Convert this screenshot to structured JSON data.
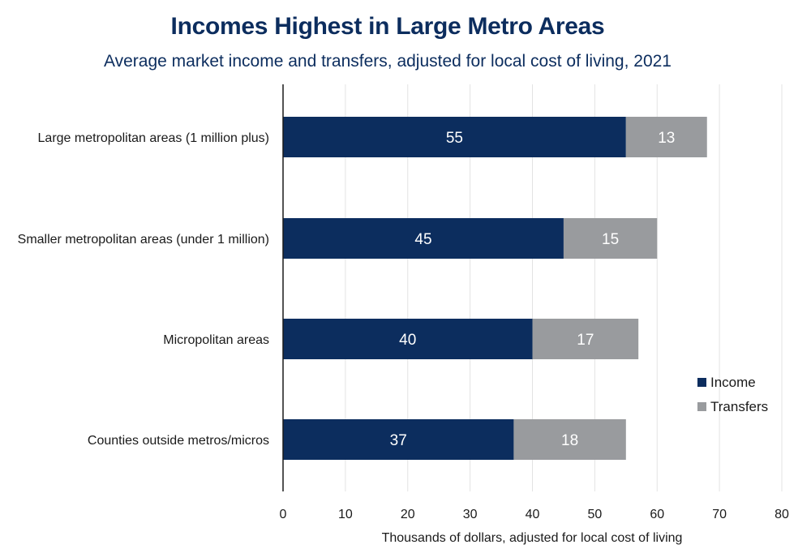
{
  "chart_data": {
    "type": "bar",
    "orientation": "horizontal",
    "stacked": true,
    "title": "Incomes Highest in Large Metro Areas",
    "subtitle": "Average market income and transfers, adjusted for local cost of living, 2021",
    "categories": [
      "Large metropolitan areas (1 million plus)",
      "Smaller metropolitan areas (under 1 million)",
      "Micropolitan areas",
      "Counties outside metros/micros"
    ],
    "series": [
      {
        "name": "Income",
        "color": "#0c2d5e",
        "values": [
          55,
          45,
          40,
          37
        ],
        "labels": [
          "55",
          "45",
          "40",
          "37"
        ]
      },
      {
        "name": "Transfers",
        "color": "#999b9e",
        "values": [
          13,
          15,
          17,
          18
        ],
        "labels": [
          "13",
          "15",
          "17",
          "18"
        ]
      }
    ],
    "xlabel": "Thousands of dollars, adjusted for local cost of living",
    "ylabel": "",
    "xlim": [
      0,
      80
    ],
    "xticks": [
      0,
      10,
      20,
      30,
      40,
      50,
      60,
      70,
      80
    ],
    "xtick_labels": [
      "0",
      "10",
      "20",
      "30",
      "40",
      "50",
      "60",
      "70",
      "80"
    ],
    "grid": "vertical",
    "legend": "right"
  },
  "colors": {
    "title": "#0c2d5e",
    "text": "#1a1a1a",
    "grid": "#e3e3e3",
    "axis": "#1a1a1a"
  }
}
